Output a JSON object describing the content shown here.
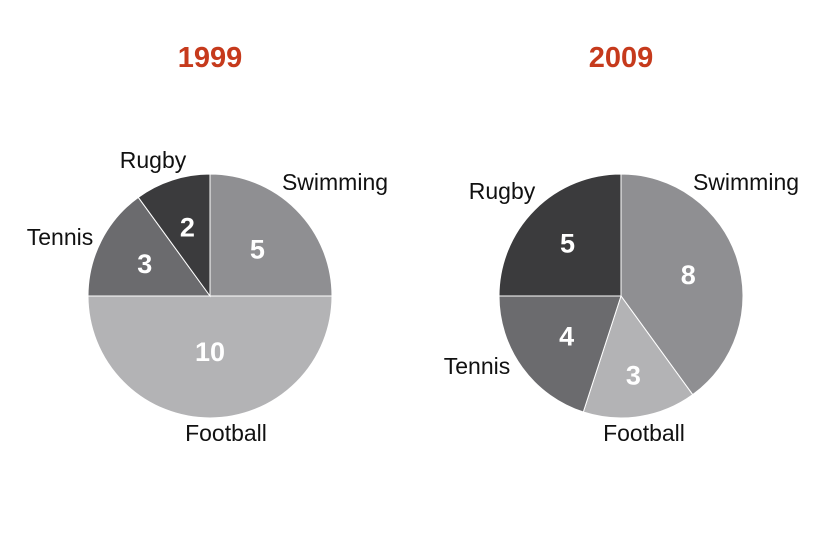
{
  "chart_data": [
    {
      "type": "pie",
      "title": "1999",
      "slices": [
        {
          "label": "Swimming",
          "value": 5,
          "color": "#8f8f92"
        },
        {
          "label": "Football",
          "value": 10,
          "color": "#b3b3b5"
        },
        {
          "label": "Tennis",
          "value": 3,
          "color": "#6b6b6e"
        },
        {
          "label": "Rugby",
          "value": 2,
          "color": "#3b3b3d"
        }
      ]
    },
    {
      "type": "pie",
      "title": "2009",
      "slices": [
        {
          "label": "Swimming",
          "value": 8,
          "color": "#8f8f92"
        },
        {
          "label": "Football",
          "value": 3,
          "color": "#b3b3b5"
        },
        {
          "label": "Tennis",
          "value": 4,
          "color": "#6b6b6e"
        },
        {
          "label": "Rugby",
          "value": 5,
          "color": "#3b3b3d"
        }
      ]
    }
  ],
  "colors": {
    "title": "#c63a1c",
    "value_text": "#ffffff",
    "label_text": "#111111",
    "background": "#ffffff"
  }
}
